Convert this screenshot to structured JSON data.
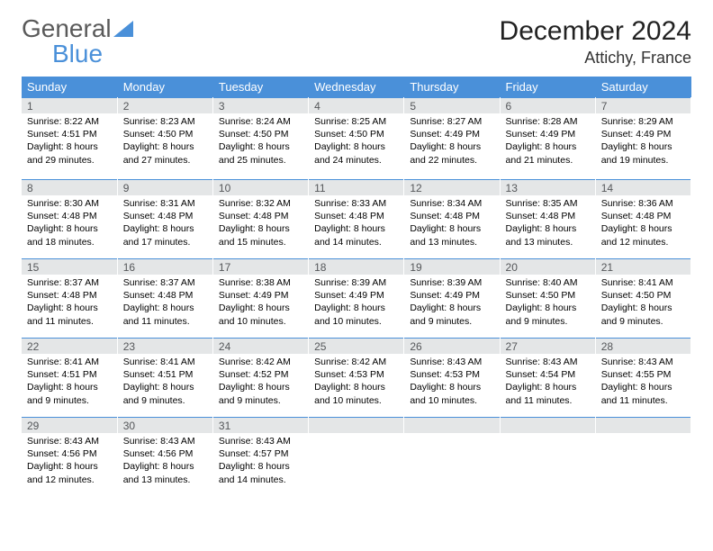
{
  "logo": {
    "word1": "General",
    "word2": "Blue",
    "color1": "#5a5a5a",
    "color2": "#4a90d9",
    "triangle_color": "#4a90d9"
  },
  "title": "December 2024",
  "location": "Attichy, France",
  "columns": [
    "Sunday",
    "Monday",
    "Tuesday",
    "Wednesday",
    "Thursday",
    "Friday",
    "Saturday"
  ],
  "style": {
    "header_bg": "#4a90d9",
    "header_text": "#ffffff",
    "daynum_bg": "#e4e6e7",
    "daynum_border": "#4a90d9",
    "body_font_size": 10.5,
    "title_font_size": 30,
    "location_font_size": 18
  },
  "weeks": [
    [
      {
        "n": "1",
        "sunrise": "Sunrise: 8:22 AM",
        "sunset": "Sunset: 4:51 PM",
        "day": "Daylight: 8 hours and 29 minutes."
      },
      {
        "n": "2",
        "sunrise": "Sunrise: 8:23 AM",
        "sunset": "Sunset: 4:50 PM",
        "day": "Daylight: 8 hours and 27 minutes."
      },
      {
        "n": "3",
        "sunrise": "Sunrise: 8:24 AM",
        "sunset": "Sunset: 4:50 PM",
        "day": "Daylight: 8 hours and 25 minutes."
      },
      {
        "n": "4",
        "sunrise": "Sunrise: 8:25 AM",
        "sunset": "Sunset: 4:50 PM",
        "day": "Daylight: 8 hours and 24 minutes."
      },
      {
        "n": "5",
        "sunrise": "Sunrise: 8:27 AM",
        "sunset": "Sunset: 4:49 PM",
        "day": "Daylight: 8 hours and 22 minutes."
      },
      {
        "n": "6",
        "sunrise": "Sunrise: 8:28 AM",
        "sunset": "Sunset: 4:49 PM",
        "day": "Daylight: 8 hours and 21 minutes."
      },
      {
        "n": "7",
        "sunrise": "Sunrise: 8:29 AM",
        "sunset": "Sunset: 4:49 PM",
        "day": "Daylight: 8 hours and 19 minutes."
      }
    ],
    [
      {
        "n": "8",
        "sunrise": "Sunrise: 8:30 AM",
        "sunset": "Sunset: 4:48 PM",
        "day": "Daylight: 8 hours and 18 minutes."
      },
      {
        "n": "9",
        "sunrise": "Sunrise: 8:31 AM",
        "sunset": "Sunset: 4:48 PM",
        "day": "Daylight: 8 hours and 17 minutes."
      },
      {
        "n": "10",
        "sunrise": "Sunrise: 8:32 AM",
        "sunset": "Sunset: 4:48 PM",
        "day": "Daylight: 8 hours and 15 minutes."
      },
      {
        "n": "11",
        "sunrise": "Sunrise: 8:33 AM",
        "sunset": "Sunset: 4:48 PM",
        "day": "Daylight: 8 hours and 14 minutes."
      },
      {
        "n": "12",
        "sunrise": "Sunrise: 8:34 AM",
        "sunset": "Sunset: 4:48 PM",
        "day": "Daylight: 8 hours and 13 minutes."
      },
      {
        "n": "13",
        "sunrise": "Sunrise: 8:35 AM",
        "sunset": "Sunset: 4:48 PM",
        "day": "Daylight: 8 hours and 13 minutes."
      },
      {
        "n": "14",
        "sunrise": "Sunrise: 8:36 AM",
        "sunset": "Sunset: 4:48 PM",
        "day": "Daylight: 8 hours and 12 minutes."
      }
    ],
    [
      {
        "n": "15",
        "sunrise": "Sunrise: 8:37 AM",
        "sunset": "Sunset: 4:48 PM",
        "day": "Daylight: 8 hours and 11 minutes."
      },
      {
        "n": "16",
        "sunrise": "Sunrise: 8:37 AM",
        "sunset": "Sunset: 4:48 PM",
        "day": "Daylight: 8 hours and 11 minutes."
      },
      {
        "n": "17",
        "sunrise": "Sunrise: 8:38 AM",
        "sunset": "Sunset: 4:49 PM",
        "day": "Daylight: 8 hours and 10 minutes."
      },
      {
        "n": "18",
        "sunrise": "Sunrise: 8:39 AM",
        "sunset": "Sunset: 4:49 PM",
        "day": "Daylight: 8 hours and 10 minutes."
      },
      {
        "n": "19",
        "sunrise": "Sunrise: 8:39 AM",
        "sunset": "Sunset: 4:49 PM",
        "day": "Daylight: 8 hours and 9 minutes."
      },
      {
        "n": "20",
        "sunrise": "Sunrise: 8:40 AM",
        "sunset": "Sunset: 4:50 PM",
        "day": "Daylight: 8 hours and 9 minutes."
      },
      {
        "n": "21",
        "sunrise": "Sunrise: 8:41 AM",
        "sunset": "Sunset: 4:50 PM",
        "day": "Daylight: 8 hours and 9 minutes."
      }
    ],
    [
      {
        "n": "22",
        "sunrise": "Sunrise: 8:41 AM",
        "sunset": "Sunset: 4:51 PM",
        "day": "Daylight: 8 hours and 9 minutes."
      },
      {
        "n": "23",
        "sunrise": "Sunrise: 8:41 AM",
        "sunset": "Sunset: 4:51 PM",
        "day": "Daylight: 8 hours and 9 minutes."
      },
      {
        "n": "24",
        "sunrise": "Sunrise: 8:42 AM",
        "sunset": "Sunset: 4:52 PM",
        "day": "Daylight: 8 hours and 9 minutes."
      },
      {
        "n": "25",
        "sunrise": "Sunrise: 8:42 AM",
        "sunset": "Sunset: 4:53 PM",
        "day": "Daylight: 8 hours and 10 minutes."
      },
      {
        "n": "26",
        "sunrise": "Sunrise: 8:43 AM",
        "sunset": "Sunset: 4:53 PM",
        "day": "Daylight: 8 hours and 10 minutes."
      },
      {
        "n": "27",
        "sunrise": "Sunrise: 8:43 AM",
        "sunset": "Sunset: 4:54 PM",
        "day": "Daylight: 8 hours and 11 minutes."
      },
      {
        "n": "28",
        "sunrise": "Sunrise: 8:43 AM",
        "sunset": "Sunset: 4:55 PM",
        "day": "Daylight: 8 hours and 11 minutes."
      }
    ],
    [
      {
        "n": "29",
        "sunrise": "Sunrise: 8:43 AM",
        "sunset": "Sunset: 4:56 PM",
        "day": "Daylight: 8 hours and 12 minutes."
      },
      {
        "n": "30",
        "sunrise": "Sunrise: 8:43 AM",
        "sunset": "Sunset: 4:56 PM",
        "day": "Daylight: 8 hours and 13 minutes."
      },
      {
        "n": "31",
        "sunrise": "Sunrise: 8:43 AM",
        "sunset": "Sunset: 4:57 PM",
        "day": "Daylight: 8 hours and 14 minutes."
      },
      {
        "empty": true
      },
      {
        "empty": true
      },
      {
        "empty": true
      },
      {
        "empty": true
      }
    ]
  ]
}
